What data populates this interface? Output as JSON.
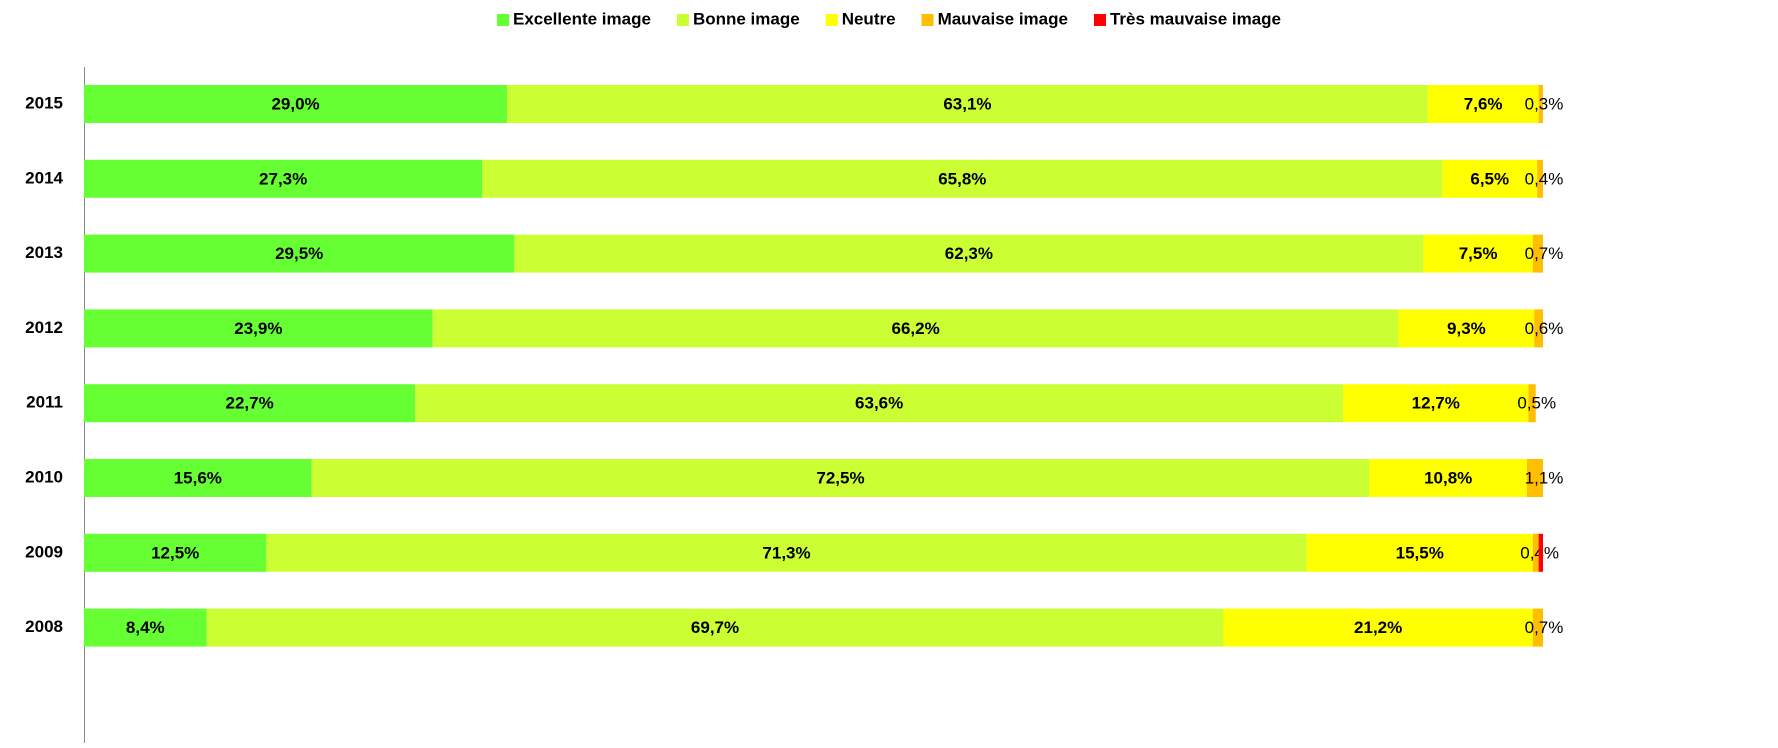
{
  "chart_data": {
    "type": "stacked-bar-horizontal",
    "categories": [
      "2015",
      "2014",
      "2013",
      "2012",
      "2011",
      "2010",
      "2009",
      "2008"
    ],
    "xlim": [
      0,
      100
    ],
    "legend": "top",
    "series": [
      {
        "name": "Excellente image",
        "color": "#66ff33",
        "values": [
          29.0,
          27.3,
          29.5,
          23.9,
          22.7,
          15.6,
          12.5,
          8.4
        ],
        "value_labels": [
          "29,0%",
          "27,3%",
          "29,5%",
          "23,9%",
          "22,7%",
          "15,6%",
          "12,5%",
          "8,4%"
        ]
      },
      {
        "name": "Bonne image",
        "color": "#ccff33",
        "values": [
          63.1,
          65.8,
          62.3,
          66.2,
          63.6,
          72.5,
          71.3,
          69.7
        ],
        "value_labels": [
          "63,1%",
          "65,8%",
          "62,3%",
          "66,2%",
          "63,6%",
          "72,5%",
          "71,3%",
          "69,7%"
        ]
      },
      {
        "name": "Neutre",
        "color": "#ffff00",
        "values": [
          7.6,
          6.5,
          7.5,
          9.3,
          12.7,
          10.8,
          15.5,
          21.2
        ],
        "value_labels": [
          "7,6%",
          "6,5%",
          "7,5%",
          "9,3%",
          "12,7%",
          "10,8%",
          "15,5%",
          "21,2%"
        ]
      },
      {
        "name": "Mauvaise image",
        "color": "#ffbf00",
        "values": [
          0.3,
          0.4,
          0.7,
          0.6,
          0.5,
          1.1,
          0.4,
          0.7
        ],
        "value_labels": [
          "0,3%",
          "0,4%",
          "0,7%",
          "0,6%",
          "0,5%",
          "1,1%",
          "0,4%",
          "0,7%"
        ]
      },
      {
        "name": "Très mauvaise image",
        "color": "#ff0000",
        "values": [
          0,
          0,
          0,
          0,
          0,
          0,
          0.3,
          0
        ]
      }
    ]
  }
}
